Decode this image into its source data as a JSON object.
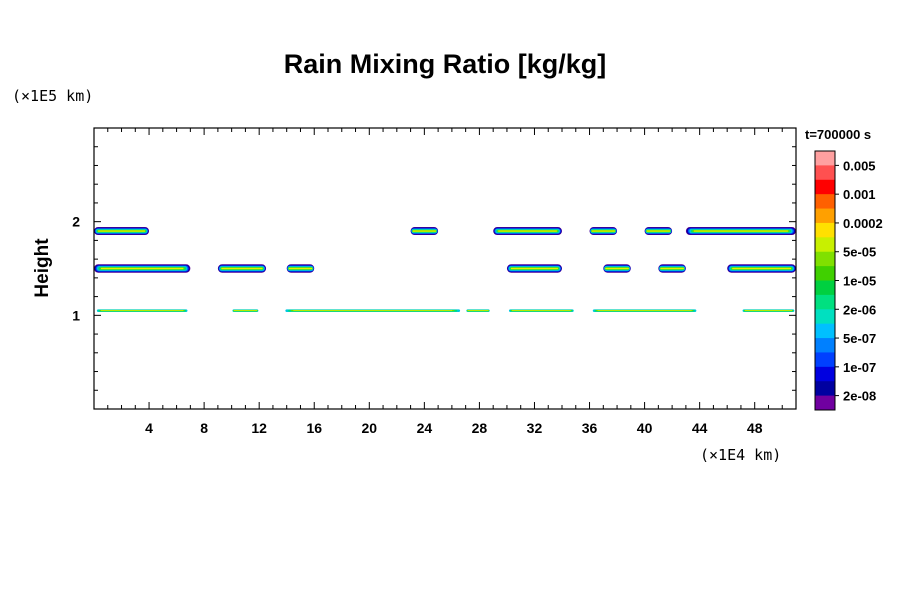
{
  "chart_data": {
    "type": "heatmap",
    "title": "Rain Mixing Ratio [kg/kg]",
    "ylabel": "Height",
    "y_scale_label": "(×1E5 km)",
    "x_scale_label": "(×1E4 km)",
    "time_label": "t=700000 s",
    "xlim": [
      0,
      51
    ],
    "ylim": [
      0,
      3
    ],
    "x_ticks": [
      4,
      8,
      12,
      16,
      20,
      24,
      28,
      32,
      36,
      40,
      44,
      48
    ],
    "y_ticks": [
      1,
      2
    ],
    "x_minor_step": 1,
    "y_minor_step": 0.2,
    "colorbar": {
      "levels": [
        "0.005",
        "0.001",
        "0.0002",
        "5e-05",
        "1e-05",
        "2e-06",
        "5e-07",
        "1e-07",
        "2e-08"
      ],
      "colors_top_to_bottom": [
        "#ffa0a0",
        "#ff5050",
        "#ff0000",
        "#ff6000",
        "#ffa000",
        "#ffe000",
        "#c8f000",
        "#80e000",
        "#40d000",
        "#00d040",
        "#00e080",
        "#00e0c0",
        "#00c0ff",
        "#0080ff",
        "#0040ff",
        "#0000e0",
        "#0000a0",
        "#7000a0"
      ]
    },
    "cloud_layers": [
      {
        "name": "upper",
        "y": 1.9,
        "segments": [
          [
            0,
            4
          ],
          [
            23,
            25
          ],
          [
            29,
            34
          ],
          [
            36,
            38
          ],
          [
            40,
            42
          ],
          [
            43,
            51
          ]
        ]
      },
      {
        "name": "middle",
        "y": 1.5,
        "segments": [
          [
            0,
            7
          ],
          [
            9,
            12.5
          ],
          [
            14,
            16
          ],
          [
            30,
            34
          ],
          [
            37,
            39
          ],
          [
            41,
            43
          ],
          [
            46,
            51
          ]
        ]
      },
      {
        "name": "lower",
        "y": 1.05,
        "segments": [
          [
            0,
            7
          ],
          [
            10,
            12
          ],
          [
            13.5,
            27
          ],
          [
            27,
            28.8
          ],
          [
            30,
            35
          ],
          [
            36,
            44
          ],
          [
            47,
            51
          ]
        ]
      }
    ]
  }
}
